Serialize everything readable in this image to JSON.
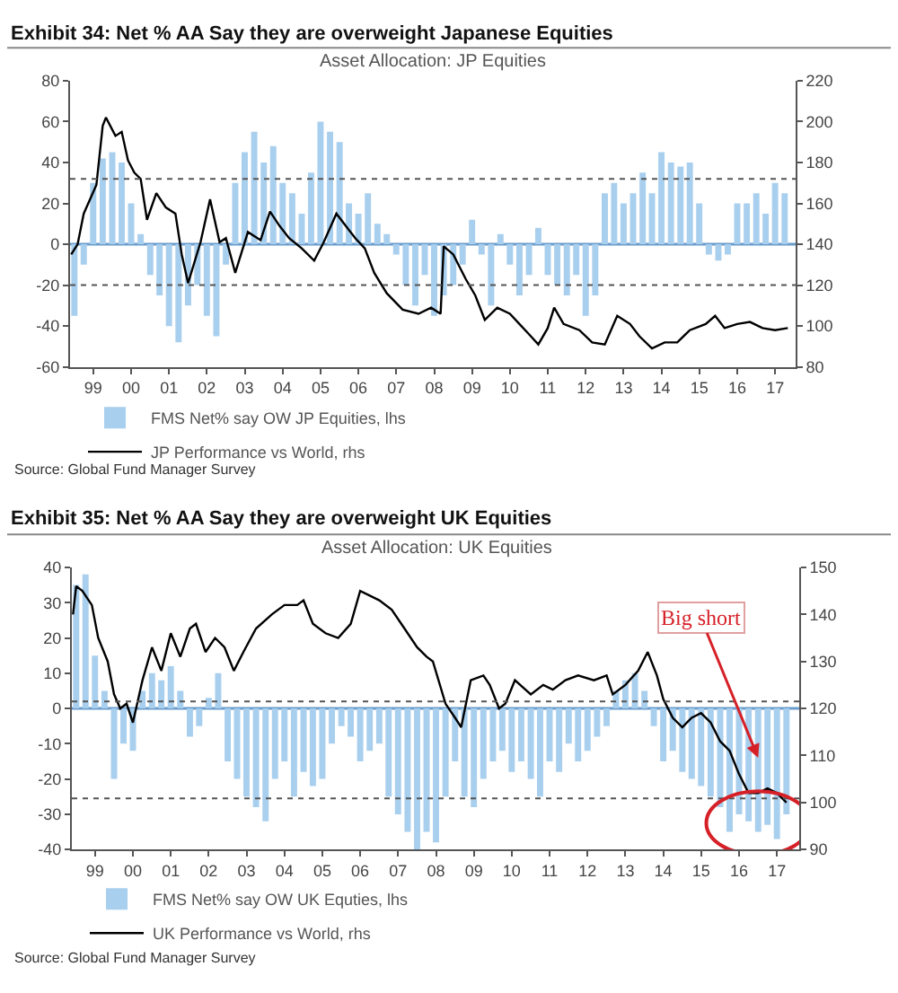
{
  "chart_data": [
    {
      "type": "bar",
      "title": "Exhibit 34: Net % AA Say they are overweight Japanese Equities",
      "subtitle": "Asset Allocation: JP Equities",
      "annotations": [
        "Source: Global Fund Manager Survey"
      ],
      "xlim": [
        "1998-11-20",
        "2018-01-15"
      ],
      "xticks": [
        {
          "value": "1999-07-01",
          "label": "99"
        },
        {
          "value": "2000-07-01",
          "label": "00"
        },
        {
          "value": "2001-07-01",
          "label": "01"
        },
        {
          "value": "2002-07-01",
          "label": "02"
        },
        {
          "value": "2003-07-01",
          "label": "03"
        },
        {
          "value": "2004-07-01",
          "label": "04"
        },
        {
          "value": "2005-07-01",
          "label": "05"
        },
        {
          "value": "2006-07-01",
          "label": "06"
        },
        {
          "value": "2007-07-01",
          "label": "07"
        },
        {
          "value": "2008-07-01",
          "label": "08"
        },
        {
          "value": "2009-07-01",
          "label": "09"
        },
        {
          "value": "2010-07-01",
          "label": "10"
        },
        {
          "value": "2011-07-01",
          "label": "11"
        },
        {
          "value": "2012-07-01",
          "label": "12"
        },
        {
          "value": "2013-07-01",
          "label": "13"
        },
        {
          "value": "2014-07-01",
          "label": "14"
        },
        {
          "value": "2015-07-01",
          "label": "15"
        },
        {
          "value": "2016-07-01",
          "label": "16"
        },
        {
          "value": "2017-07-01",
          "label": "17"
        }
      ],
      "ylim": [
        -60,
        80
      ],
      "yticks": [
        -60,
        -40,
        -20,
        0,
        20,
        40,
        60,
        80
      ],
      "y2lim": [
        80,
        220
      ],
      "y2ticks": [
        80,
        100,
        120,
        140,
        160,
        180,
        200,
        220
      ],
      "ref_lines": [
        {
          "axis": "y",
          "value": 0,
          "color": "#6a9ccc",
          "line_style": "solid"
        },
        {
          "axis": "y",
          "value": 32,
          "color": "#555555",
          "line_style": "dotted"
        },
        {
          "axis": "y",
          "value": -20,
          "color": "#555555",
          "line_style": "dotted"
        }
      ],
      "grid": false,
      "legend": "bottom",
      "marker": "none",
      "series": [
        {
          "name": "FMS Net% say OW JP Equities, lhs",
          "color": "#a9cfee",
          "x": [
            "1999-01",
            "1999-04",
            "1999-07",
            "1999-10",
            "2000-01",
            "2000-04",
            "2000-07",
            "2000-10",
            "2001-01",
            "2001-04",
            "2001-07",
            "2001-10",
            "2002-01",
            "2002-04",
            "2002-07",
            "2002-10",
            "2003-01",
            "2003-04",
            "2003-07",
            "2003-10",
            "2004-01",
            "2004-04",
            "2004-07",
            "2004-10",
            "2005-01",
            "2005-04",
            "2005-07",
            "2005-10",
            "2006-01",
            "2006-04",
            "2006-07",
            "2006-10",
            "2007-01",
            "2007-04",
            "2007-07",
            "2007-10",
            "2008-01",
            "2008-04",
            "2008-07",
            "2008-10",
            "2009-01",
            "2009-04",
            "2009-07",
            "2009-10",
            "2010-01",
            "2010-04",
            "2010-07",
            "2010-10",
            "2011-01",
            "2011-04",
            "2011-07",
            "2011-10",
            "2012-01",
            "2012-04",
            "2012-07",
            "2012-10",
            "2013-01",
            "2013-04",
            "2013-07",
            "2013-10",
            "2014-01",
            "2014-04",
            "2014-07",
            "2014-10",
            "2015-01",
            "2015-04",
            "2015-07",
            "2015-10",
            "2016-01",
            "2016-04",
            "2016-07",
            "2016-10",
            "2017-01",
            "2017-04",
            "2017-07",
            "2017-10"
          ],
          "values": [
            -35,
            -10,
            30,
            42,
            45,
            40,
            20,
            5,
            -15,
            -25,
            -40,
            -48,
            -30,
            -20,
            -35,
            -45,
            -10,
            30,
            45,
            55,
            40,
            48,
            30,
            25,
            15,
            35,
            60,
            55,
            50,
            20,
            15,
            25,
            10,
            5,
            -5,
            -20,
            -30,
            -15,
            -35,
            -25,
            -20,
            -10,
            12,
            -5,
            -30,
            5,
            -10,
            -25,
            -15,
            8,
            -15,
            -20,
            -25,
            -15,
            -35,
            -25,
            25,
            30,
            20,
            25,
            35,
            25,
            45,
            40,
            38,
            40,
            20,
            -5,
            -8,
            -5,
            20,
            20,
            25,
            15,
            30,
            25
          ]
        },
        {
          "name": "JP Performance vs World, rhs",
          "type": "line",
          "axis": "y2",
          "color": "#000000",
          "line_style": "solid",
          "x": [
            "1998-12",
            "1999-02",
            "1999-04",
            "1999-08",
            "1999-10",
            "1999-11",
            "2000-02",
            "2000-04",
            "2000-06",
            "2000-08",
            "2000-10",
            "2000-12",
            "2001-03",
            "2001-06",
            "2001-09",
            "2001-11",
            "2002-01",
            "2002-05",
            "2002-08",
            "2002-11",
            "2003-01",
            "2003-04",
            "2003-08",
            "2003-12",
            "2004-03",
            "2004-06",
            "2004-09",
            "2005-01",
            "2005-05",
            "2005-08",
            "2005-12",
            "2006-03",
            "2006-06",
            "2006-09",
            "2006-12",
            "2007-04",
            "2007-09",
            "2008-02",
            "2008-06",
            "2008-09",
            "2008-10",
            "2009-01",
            "2009-05",
            "2009-08",
            "2009-11",
            "2010-03",
            "2010-07",
            "2010-10",
            "2011-01",
            "2011-04",
            "2011-07",
            "2011-09",
            "2011-12",
            "2012-05",
            "2012-09",
            "2013-01",
            "2013-05",
            "2013-09",
            "2013-12",
            "2014-04",
            "2014-08",
            "2014-12",
            "2015-04",
            "2015-09",
            "2015-12",
            "2016-03",
            "2016-07",
            "2016-11",
            "2017-03",
            "2017-07",
            "2017-11"
          ],
          "values": [
            135,
            140,
            155,
            169,
            198,
            202,
            193,
            195,
            181,
            175,
            172,
            152,
            165,
            158,
            155,
            135,
            121,
            141,
            162,
            141,
            143,
            126,
            146,
            142,
            156,
            149,
            143,
            138,
            132,
            141,
            155,
            149,
            143,
            138,
            126,
            116,
            108,
            106,
            109,
            106,
            139,
            135,
            123,
            115,
            103,
            109,
            106,
            101,
            96,
            91,
            99,
            109,
            101,
            98,
            92,
            91,
            105,
            101,
            95,
            89,
            92,
            92,
            98,
            101,
            105,
            99,
            101,
            102,
            99,
            98,
            99
          ]
        }
      ]
    },
    {
      "type": "bar",
      "title": "Exhibit 35: Net % AA Say they are overweight UK Equities",
      "subtitle": "Asset Allocation: UK Equities",
      "annotations": [
        {
          "text": "Big short",
          "x": "2017-01",
          "y": -14
        },
        "Source: Global Fund Manager Survey"
      ],
      "xlim": [
        "1998-11-20",
        "2018-02-01"
      ],
      "xticks": [
        {
          "value": "1999-07-01",
          "label": "99"
        },
        {
          "value": "2000-07-01",
          "label": "00"
        },
        {
          "value": "2001-07-01",
          "label": "01"
        },
        {
          "value": "2002-07-01",
          "label": "02"
        },
        {
          "value": "2003-07-01",
          "label": "03"
        },
        {
          "value": "2004-07-01",
          "label": "04"
        },
        {
          "value": "2005-07-01",
          "label": "05"
        },
        {
          "value": "2006-07-01",
          "label": "06"
        },
        {
          "value": "2007-07-01",
          "label": "07"
        },
        {
          "value": "2008-07-01",
          "label": "08"
        },
        {
          "value": "2009-07-01",
          "label": "09"
        },
        {
          "value": "2010-07-01",
          "label": "10"
        },
        {
          "value": "2011-07-01",
          "label": "11"
        },
        {
          "value": "2012-07-01",
          "label": "12"
        },
        {
          "value": "2013-07-01",
          "label": "13"
        },
        {
          "value": "2014-07-01",
          "label": "14"
        },
        {
          "value": "2015-07-01",
          "label": "15"
        },
        {
          "value": "2016-07-01",
          "label": "16"
        },
        {
          "value": "2017-07-01",
          "label": "17"
        }
      ],
      "ylim": [
        -40,
        40
      ],
      "yticks": [
        -40,
        -30,
        -20,
        -10,
        0,
        10,
        20,
        30,
        40
      ],
      "y2lim": [
        90,
        150
      ],
      "y2ticks": [
        90,
        100,
        110,
        120,
        130,
        140,
        150
      ],
      "ref_lines": [
        {
          "axis": "y",
          "value": 0,
          "color": "#6a9ccc",
          "line_style": "solid"
        },
        {
          "axis": "y",
          "value": 2,
          "color": "#555555",
          "line_style": "dotted"
        },
        {
          "axis": "y",
          "value": -25.5,
          "color": "#555555",
          "line_style": "dotted"
        }
      ],
      "grid": false,
      "legend": "bottom",
      "marker": "none",
      "series": [
        {
          "name": "FMS Net% say OW UK Equties, lhs",
          "color": "#a9cfee",
          "x": [
            "1999-01",
            "1999-04",
            "1999-07",
            "1999-10",
            "2000-01",
            "2000-04",
            "2000-07",
            "2000-10",
            "2001-01",
            "2001-04",
            "2001-07",
            "2001-10",
            "2002-01",
            "2002-04",
            "2002-07",
            "2002-10",
            "2003-01",
            "2003-04",
            "2003-07",
            "2003-10",
            "2004-01",
            "2004-04",
            "2004-07",
            "2004-10",
            "2005-01",
            "2005-04",
            "2005-07",
            "2005-10",
            "2006-01",
            "2006-04",
            "2006-07",
            "2006-10",
            "2007-01",
            "2007-04",
            "2007-07",
            "2007-10",
            "2008-01",
            "2008-04",
            "2008-07",
            "2008-10",
            "2009-01",
            "2009-04",
            "2009-07",
            "2009-10",
            "2010-01",
            "2010-04",
            "2010-07",
            "2010-10",
            "2011-01",
            "2011-04",
            "2011-07",
            "2011-10",
            "2012-01",
            "2012-04",
            "2012-07",
            "2012-10",
            "2013-01",
            "2013-04",
            "2013-07",
            "2013-10",
            "2014-01",
            "2014-04",
            "2014-07",
            "2014-10",
            "2015-01",
            "2015-04",
            "2015-07",
            "2015-10",
            "2016-01",
            "2016-04",
            "2016-07",
            "2016-10",
            "2017-01",
            "2017-04",
            "2017-07",
            "2017-10"
          ],
          "values": [
            35,
            38,
            15,
            5,
            -20,
            -10,
            -12,
            5,
            10,
            8,
            12,
            5,
            -8,
            -5,
            3,
            10,
            -15,
            -20,
            -25,
            -28,
            -32,
            -20,
            -15,
            -25,
            -18,
            -22,
            -20,
            -10,
            -5,
            -8,
            -15,
            -12,
            -10,
            -25,
            -30,
            -35,
            -40,
            -35,
            -38,
            -25,
            -15,
            -25,
            -28,
            -20,
            -15,
            -12,
            -18,
            -15,
            -20,
            -25,
            -15,
            -18,
            -10,
            -15,
            -12,
            -8,
            -5,
            5,
            8,
            10,
            5,
            -5,
            -15,
            -12,
            -18,
            -20,
            -22,
            -25,
            -28,
            -35,
            -30,
            -32,
            -35,
            -33,
            -37,
            -30
          ]
        },
        {
          "name": "UK Performance vs World, rhs",
          "type": "line",
          "axis": "y2",
          "color": "#000000",
          "line_style": "solid",
          "x": [
            "1998-12",
            "1999-01",
            "1999-03",
            "1999-06",
            "1999-08",
            "1999-11",
            "2000-01",
            "2000-03",
            "2000-05",
            "2000-07",
            "2000-10",
            "2001-01",
            "2001-04",
            "2001-07",
            "2001-10",
            "2002-01",
            "2002-03",
            "2002-06",
            "2002-09",
            "2002-12",
            "2003-03",
            "2003-06",
            "2003-10",
            "2004-03",
            "2004-07",
            "2004-11",
            "2005-01",
            "2005-04",
            "2005-08",
            "2005-12",
            "2006-04",
            "2006-07",
            "2006-10",
            "2007-01",
            "2007-05",
            "2007-09",
            "2008-01",
            "2008-04",
            "2008-06",
            "2008-10",
            "2009-01",
            "2009-03",
            "2009-06",
            "2009-10",
            "2009-12",
            "2010-03",
            "2010-05",
            "2010-08",
            "2011-01",
            "2011-05",
            "2011-08",
            "2011-12",
            "2012-04",
            "2012-09",
            "2013-01",
            "2013-03",
            "2013-07",
            "2013-11",
            "2014-02",
            "2014-05",
            "2014-07",
            "2014-10",
            "2015-01",
            "2015-04",
            "2015-07",
            "2015-10",
            "2016-01",
            "2016-04",
            "2016-07",
            "2016-10",
            "2017-01",
            "2017-04",
            "2017-07",
            "2017-10"
          ],
          "values": [
            140,
            146,
            145,
            142,
            135,
            130,
            123,
            120,
            121,
            117,
            126,
            133,
            128,
            136,
            131,
            137,
            138,
            132,
            135,
            133,
            128,
            132,
            137,
            140,
            142,
            142,
            143,
            138,
            136,
            135,
            138,
            145,
            144,
            143,
            141,
            137,
            133,
            131,
            130,
            121,
            118,
            116,
            126,
            127,
            125,
            120,
            121,
            126,
            123,
            125,
            124,
            126,
            127,
            126,
            127,
            123,
            125,
            128,
            132,
            127,
            122,
            118,
            116,
            118,
            119,
            117,
            113,
            111,
            106,
            102,
            102,
            103,
            102,
            100
          ]
        }
      ]
    }
  ]
}
